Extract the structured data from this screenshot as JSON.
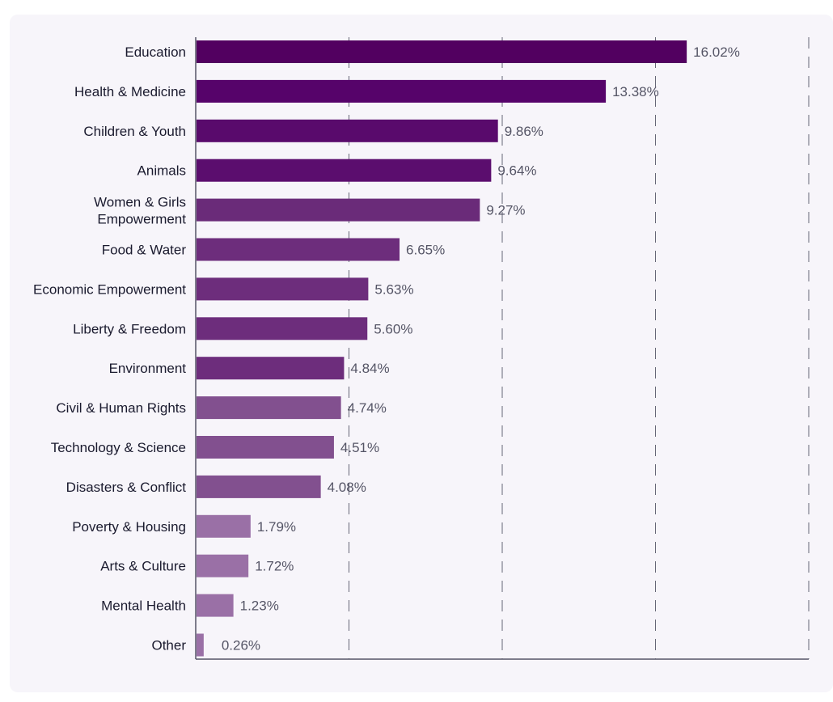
{
  "chart_data": {
    "type": "bar",
    "orientation": "horizontal",
    "title": "",
    "xlabel": "",
    "ylabel": "",
    "xlim": [
      0,
      20
    ],
    "grid": true,
    "categories": [
      "Education",
      "Health & Medicine",
      "Children & Youth",
      "Animals",
      "Women & Girls Empowerment",
      "Food & Water",
      "Economic Empowerment",
      "Liberty & Freedom",
      "Environment",
      "Civil & Human Rights",
      "Technology & Science",
      "Disasters & Conflict",
      "Poverty & Housing",
      "Arts & Culture",
      "Mental Health",
      "Other"
    ],
    "values": [
      16.02,
      13.38,
      9.86,
      9.64,
      9.27,
      6.65,
      5.63,
      5.6,
      4.84,
      4.74,
      4.51,
      4.08,
      1.79,
      1.72,
      1.23,
      0.26
    ],
    "value_labels": [
      "16.02%",
      "13.38%",
      "9.86%",
      "9.64%",
      "9.27%",
      "6.65%",
      "5.63%",
      "5.60%",
      "4.84%",
      "4.74%",
      "4.51%",
      "4.08%",
      "1.79%",
      "1.72%",
      "1.23%",
      "0.26%"
    ],
    "colors": [
      "#520060",
      "#56036a",
      "#590a6c",
      "#5b0d6e",
      "#6a2b79",
      "#6d2d7c",
      "#6d2d7c",
      "#6d2d7c",
      "#6d2d7c",
      "#82508f",
      "#82508f",
      "#82508f",
      "#9a70a6",
      "#9a70a6",
      "#9a70a6",
      "#9a70a6"
    ],
    "label_color": "#1a1a2e",
    "value_label_color": "#555566",
    "axis_color": "#555566",
    "grid_color": "#666677"
  }
}
